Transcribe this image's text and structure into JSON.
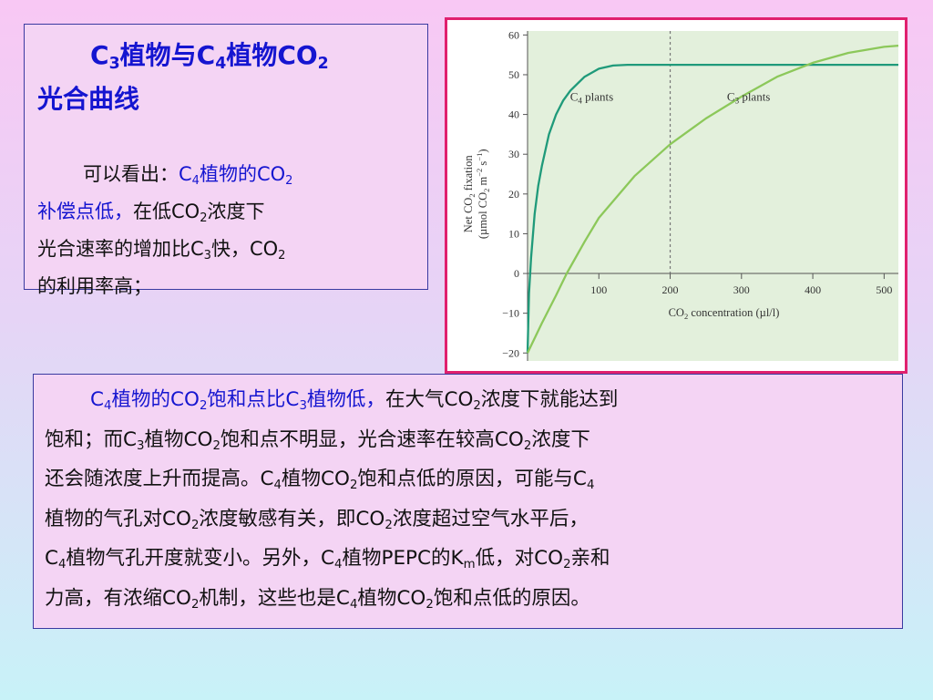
{
  "intro": {
    "title_line1": [
      "C",
      "3",
      "植物与C",
      "4",
      "植物CO",
      "2"
    ],
    "title_line2": "光合曲线",
    "lines": [
      [
        {
          "t": "可以看出：",
          "c": ""
        },
        {
          "t": "C",
          "c": "blue"
        },
        {
          "t": "4",
          "c": "blue",
          "sub": true
        },
        {
          "t": "植物的CO",
          "c": "blue"
        },
        {
          "t": "2",
          "c": "blue",
          "sub": true
        }
      ],
      [
        {
          "t": "补偿点低，",
          "c": "blue"
        },
        {
          "t": "在低CO",
          "c": ""
        },
        {
          "t": "2",
          "c": "",
          "sub": true
        },
        {
          "t": "浓度下",
          "c": ""
        }
      ],
      [
        {
          "t": "光合速率的增加比C",
          "c": ""
        },
        {
          "t": "3",
          "c": "",
          "sub": true
        },
        {
          "t": "快，CO",
          "c": ""
        },
        {
          "t": "2",
          "c": "",
          "sub": true
        }
      ],
      [
        {
          "t": "的利用率高；",
          "c": ""
        }
      ]
    ]
  },
  "detail": {
    "lines": [
      [
        {
          "t": "C",
          "c": "blue"
        },
        {
          "t": "4",
          "c": "blue",
          "sub": true
        },
        {
          "t": "植物的CO",
          "c": "blue"
        },
        {
          "t": "2",
          "c": "blue",
          "sub": true
        },
        {
          "t": "饱和点比C",
          "c": "blue"
        },
        {
          "t": "3",
          "c": "blue",
          "sub": true
        },
        {
          "t": "植物低，",
          "c": "blue"
        },
        {
          "t": "在大气CO",
          "c": ""
        },
        {
          "t": "2",
          "c": "",
          "sub": true
        },
        {
          "t": "浓度下就能达到",
          "c": ""
        }
      ],
      [
        {
          "t": "饱和；而C",
          "c": ""
        },
        {
          "t": "3",
          "c": "",
          "sub": true
        },
        {
          "t": "植物CO",
          "c": ""
        },
        {
          "t": "2",
          "c": "",
          "sub": true
        },
        {
          "t": "饱和点不明显，光合速率在较高CO",
          "c": ""
        },
        {
          "t": "2",
          "c": "",
          "sub": true
        },
        {
          "t": "浓度下",
          "c": ""
        }
      ],
      [
        {
          "t": "还会随浓度上升而提高。C",
          "c": ""
        },
        {
          "t": "4",
          "c": "",
          "sub": true
        },
        {
          "t": "植物CO",
          "c": ""
        },
        {
          "t": "2",
          "c": "",
          "sub": true
        },
        {
          "t": "饱和点低的原因，可能与C",
          "c": ""
        },
        {
          "t": "4",
          "c": "",
          "sub": true
        }
      ],
      [
        {
          "t": "植物的气孔对CO",
          "c": ""
        },
        {
          "t": "2",
          "c": "",
          "sub": true
        },
        {
          "t": "浓度敏感有关，即CO",
          "c": ""
        },
        {
          "t": "2",
          "c": "",
          "sub": true
        },
        {
          "t": "浓度超过空气水平后，",
          "c": ""
        }
      ],
      [
        {
          "t": "C",
          "c": ""
        },
        {
          "t": "4",
          "c": "",
          "sub": true
        },
        {
          "t": "植物气孔开度就变小。另外，C",
          "c": ""
        },
        {
          "t": "4",
          "c": "",
          "sub": true
        },
        {
          "t": "植物PEPC的K",
          "c": ""
        },
        {
          "t": "m",
          "c": "",
          "sub": true
        },
        {
          "t": "低，对CO",
          "c": ""
        },
        {
          "t": "2",
          "c": "",
          "sub": true
        },
        {
          "t": "亲和",
          "c": ""
        }
      ],
      [
        {
          "t": "力高，有浓缩CO",
          "c": ""
        },
        {
          "t": "2",
          "c": "",
          "sub": true
        },
        {
          "t": "机制，这些也是C",
          "c": ""
        },
        {
          "t": "4",
          "c": "",
          "sub": true
        },
        {
          "t": "植物CO",
          "c": ""
        },
        {
          "t": "2",
          "c": "",
          "sub": true
        },
        {
          "t": "饱和点低的原因。",
          "c": ""
        }
      ]
    ]
  },
  "colors": {
    "blue_text": "#1515d0",
    "c4_curve": "#1f9a7a",
    "c3_curve": "#8cc85a",
    "plot_bg": "#e3f0dc",
    "frame": "#e0206e"
  },
  "chart_data": {
    "type": "line",
    "xlabel": "CO2 concentration (µl/l)",
    "ylabel_line1": "Net CO2 fixation",
    "ylabel_line2": "(µmol CO2 m-2 s-1)",
    "xlim": [
      0,
      520
    ],
    "ylim": [
      -22,
      61
    ],
    "xticks": [
      100,
      200,
      300,
      400,
      500
    ],
    "yticks": [
      -20,
      -10,
      0,
      10,
      20,
      30,
      40,
      50,
      60
    ],
    "reference_x": 200,
    "series": [
      {
        "name": "C4 plants",
        "label_parts": [
          "C",
          "4",
          " plants"
        ],
        "x": [
          0,
          2,
          5,
          10,
          15,
          20,
          30,
          40,
          50,
          60,
          80,
          100,
          120,
          140,
          160,
          180,
          200,
          250,
          300,
          400,
          520
        ],
        "y": [
          -20,
          -5,
          4,
          15,
          22,
          27,
          35,
          40,
          43.5,
          46,
          49.5,
          51.5,
          52.3,
          52.5,
          52.5,
          52.5,
          52.5,
          52.5,
          52.5,
          52.5,
          52.5
        ]
      },
      {
        "name": "C3 plants",
        "label_parts": [
          "C",
          "3",
          " plants"
        ],
        "x": [
          0,
          20,
          40,
          55,
          80,
          100,
          150,
          200,
          250,
          300,
          350,
          400,
          450,
          500,
          520
        ],
        "y": [
          -20,
          -12.5,
          -5.5,
          0,
          8,
          14,
          24.5,
          32.5,
          39,
          44.5,
          49.5,
          53,
          55.5,
          57,
          57.3
        ]
      }
    ]
  }
}
